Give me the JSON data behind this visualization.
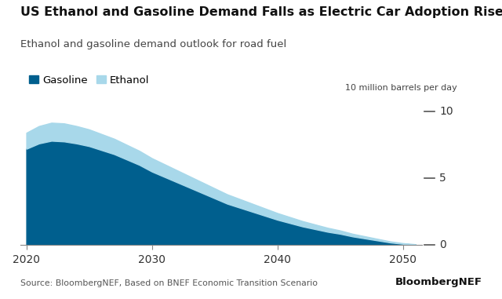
{
  "title": "US Ethanol and Gasoline Demand Falls as Electric Car Adoption Rises",
  "subtitle": "Ethanol and gasoline demand outlook for road fuel",
  "ylabel": "10 million barrels per day",
  "source": "Source: BloombergNEF, Based on BNEF Economic Transition Scenario",
  "brand": "BloombergNEF",
  "gasoline_color": "#005f8e",
  "ethanol_color": "#a8d8ea",
  "background_color": "#ffffff",
  "years": [
    2020,
    2021,
    2022,
    2023,
    2024,
    2025,
    2026,
    2027,
    2028,
    2029,
    2030,
    2031,
    2032,
    2033,
    2034,
    2035,
    2036,
    2037,
    2038,
    2039,
    2040,
    2041,
    2042,
    2043,
    2044,
    2045,
    2046,
    2047,
    2048,
    2049,
    2050,
    2051
  ],
  "gasoline": [
    7.2,
    7.6,
    7.8,
    7.75,
    7.6,
    7.4,
    7.1,
    6.8,
    6.4,
    6.0,
    5.5,
    5.1,
    4.7,
    4.3,
    3.9,
    3.5,
    3.1,
    2.8,
    2.5,
    2.2,
    1.9,
    1.65,
    1.4,
    1.2,
    1.0,
    0.85,
    0.65,
    0.5,
    0.35,
    0.2,
    0.1,
    0.05
  ],
  "ethanol": [
    1.2,
    1.3,
    1.35,
    1.35,
    1.3,
    1.25,
    1.2,
    1.15,
    1.1,
    1.05,
    1.0,
    0.95,
    0.9,
    0.85,
    0.8,
    0.75,
    0.7,
    0.65,
    0.6,
    0.55,
    0.5,
    0.45,
    0.4,
    0.35,
    0.3,
    0.25,
    0.2,
    0.16,
    0.12,
    0.08,
    0.05,
    0.02
  ],
  "xlim": [
    2019.5,
    2051.5
  ],
  "ylim": [
    0,
    10.5
  ],
  "yticks": [
    0,
    5,
    10
  ],
  "xticks": [
    2020,
    2030,
    2040,
    2050
  ],
  "title_fontsize": 11.5,
  "subtitle_fontsize": 9.5,
  "tick_fontsize": 10
}
